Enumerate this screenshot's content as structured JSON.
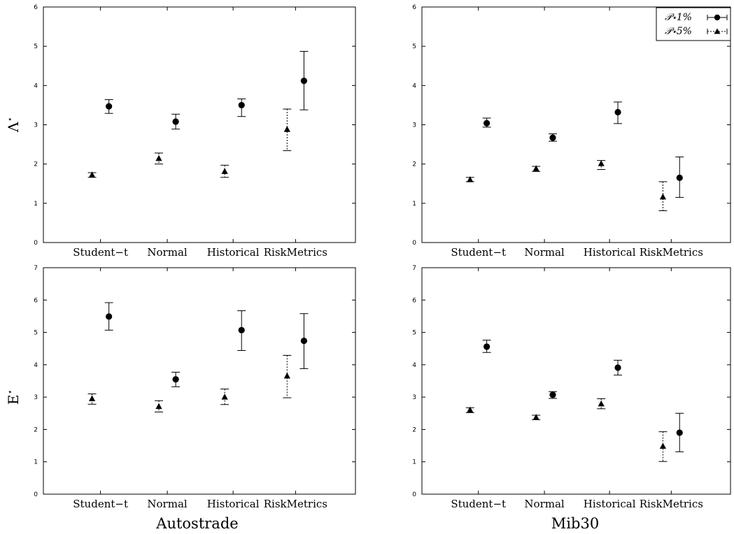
{
  "labels": {
    "ylabel_top": "Λ",
    "ylabel_bottom": "E",
    "ylabel_superscript": "⋆",
    "xlabel_left": "Autostrade",
    "xlabel_right": "Mib30"
  },
  "legend": {
    "series1": "𝒫⋆1%",
    "series2": "𝒫⋆5%"
  },
  "chart_data": [
    {
      "type": "scatter",
      "panel": "top-left",
      "categories": [
        "Student−t",
        "Normal",
        "Historical",
        "RiskMetrics"
      ],
      "ylim": [
        0,
        6
      ],
      "yticks": [
        0,
        1,
        2,
        3,
        4,
        5,
        6
      ],
      "series": [
        {
          "values": [
            3.47,
            3.08,
            3.5,
            4.12
          ],
          "lower": [
            3.29,
            2.89,
            3.21,
            3.38
          ],
          "upper": [
            3.64,
            3.27,
            3.66,
            4.87
          ],
          "marker": "circle",
          "line": "solid"
        },
        {
          "values": [
            1.72,
            2.14,
            1.81,
            2.88
          ],
          "lower": [
            1.66,
            2.0,
            1.66,
            2.34
          ],
          "upper": [
            1.78,
            2.28,
            1.97,
            3.4
          ],
          "marker": "triangle",
          "line": "dashed"
        }
      ]
    },
    {
      "type": "scatter",
      "panel": "top-right",
      "categories": [
        "Student−t",
        "Normal",
        "Historical",
        "RiskMetrics"
      ],
      "ylim": [
        0,
        6
      ],
      "yticks": [
        0,
        1,
        2,
        3,
        4,
        5,
        6
      ],
      "legend": "top-right",
      "series": [
        {
          "values": [
            3.04,
            2.67,
            3.32,
            1.65
          ],
          "lower": [
            2.94,
            2.58,
            3.03,
            1.15
          ],
          "upper": [
            3.17,
            2.77,
            3.58,
            2.18
          ],
          "marker": "circle",
          "line": "solid"
        },
        {
          "values": [
            1.6,
            1.88,
            2.01,
            1.16
          ],
          "lower": [
            1.55,
            1.81,
            1.86,
            0.81
          ],
          "upper": [
            1.66,
            1.94,
            2.09,
            1.55
          ],
          "marker": "triangle",
          "line": "dashed"
        }
      ]
    },
    {
      "type": "scatter",
      "panel": "bottom-left",
      "categories": [
        "Student−t",
        "Normal",
        "Historical",
        "RiskMetrics"
      ],
      "ylim": [
        0,
        7
      ],
      "yticks": [
        0,
        1,
        2,
        3,
        4,
        5,
        6,
        7
      ],
      "series": [
        {
          "values": [
            5.49,
            3.55,
            5.07,
            4.74
          ],
          "lower": [
            5.07,
            3.32,
            4.44,
            3.88
          ],
          "upper": [
            5.92,
            3.77,
            5.67,
            5.58
          ],
          "marker": "circle",
          "line": "solid"
        },
        {
          "values": [
            2.95,
            2.71,
            3.0,
            3.65
          ],
          "lower": [
            2.78,
            2.54,
            2.77,
            2.98
          ],
          "upper": [
            3.1,
            2.89,
            3.25,
            4.29
          ],
          "marker": "triangle",
          "line": "dashed"
        }
      ]
    },
    {
      "type": "scatter",
      "panel": "bottom-right",
      "categories": [
        "Student−t",
        "Normal",
        "Historical",
        "RiskMetrics"
      ],
      "ylim": [
        0,
        7
      ],
      "yticks": [
        0,
        1,
        2,
        3,
        4,
        5,
        6,
        7
      ],
      "series": [
        {
          "values": [
            4.56,
            3.07,
            3.91,
            1.9
          ],
          "lower": [
            4.38,
            2.96,
            3.68,
            1.31
          ],
          "upper": [
            4.76,
            3.17,
            4.14,
            2.5
          ],
          "marker": "circle",
          "line": "solid"
        },
        {
          "values": [
            2.6,
            2.37,
            2.79,
            1.48
          ],
          "lower": [
            2.52,
            2.3,
            2.64,
            1.01
          ],
          "upper": [
            2.67,
            2.44,
            2.95,
            1.93
          ],
          "marker": "triangle",
          "line": "dashed"
        }
      ]
    }
  ]
}
